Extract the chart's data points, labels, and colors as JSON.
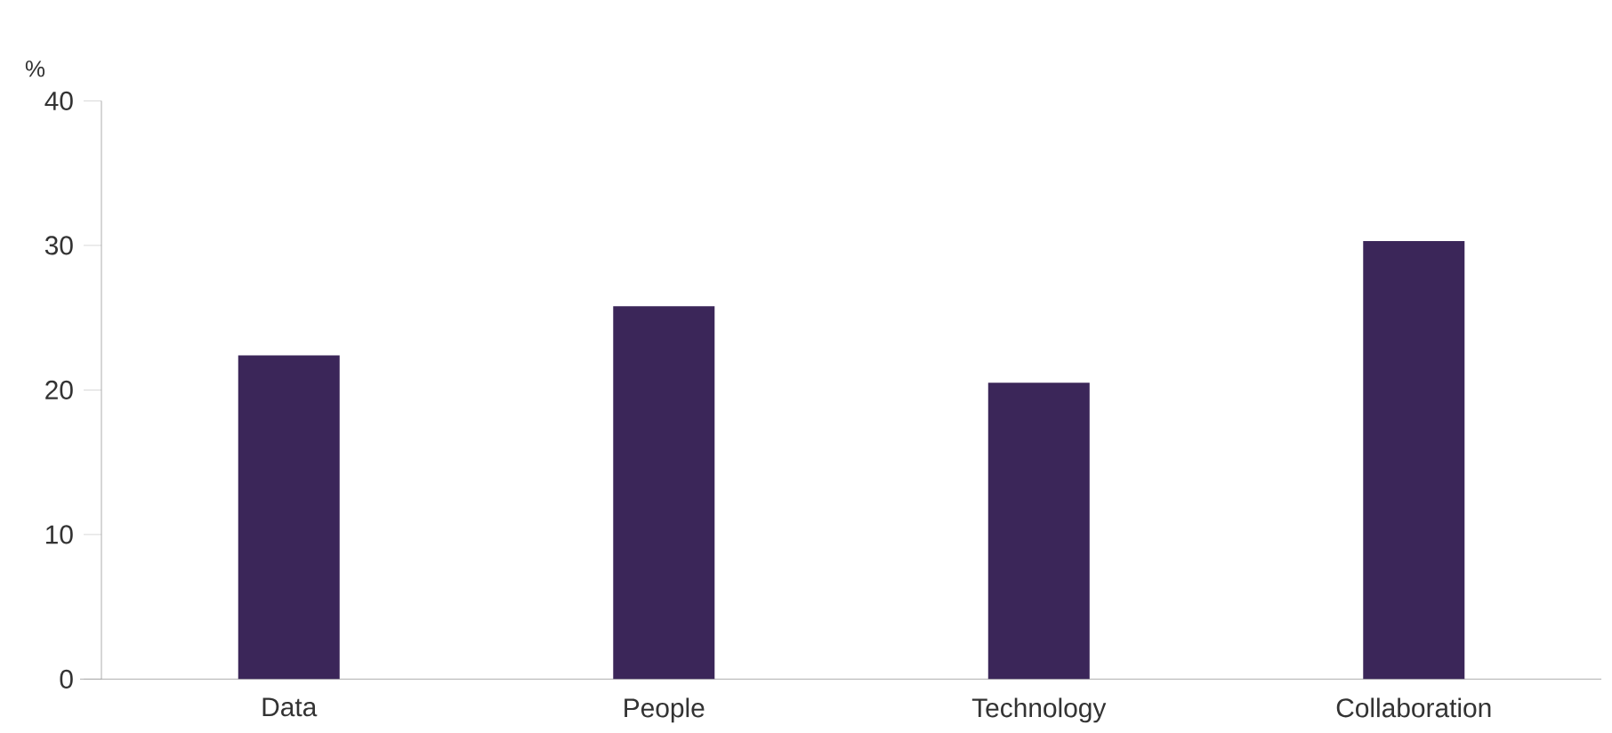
{
  "chart_data": {
    "type": "bar",
    "ylabel": "%",
    "categories": [
      "Data",
      "People",
      "Technology",
      "Collaboration"
    ],
    "values": [
      22.4,
      25.8,
      20.5,
      30.3
    ],
    "color": "#3b2659",
    "ylim": [
      0,
      40
    ],
    "yticks": [
      0,
      10,
      20,
      30,
      40
    ],
    "grid": false
  }
}
